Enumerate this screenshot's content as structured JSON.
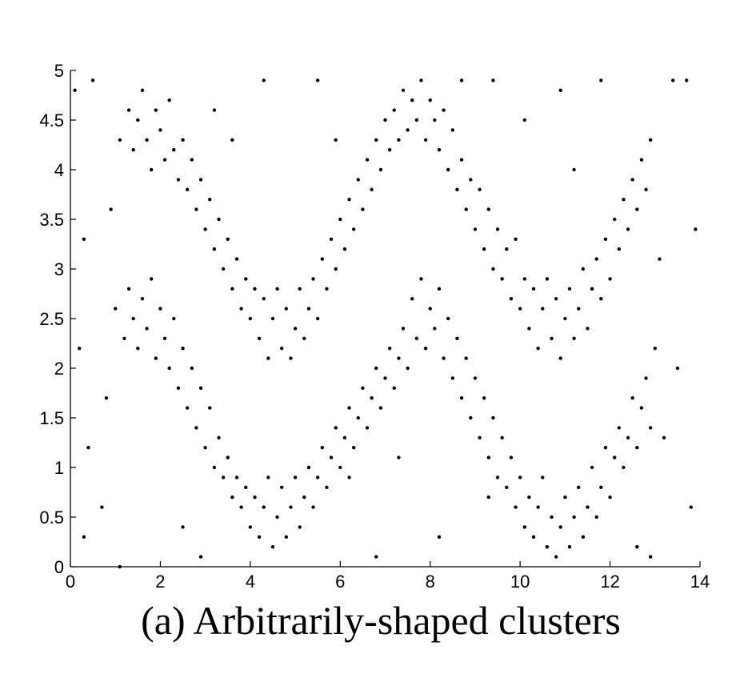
{
  "chart_data": {
    "type": "scatter",
    "title": "(a) Arbitrarily-shaped clusters",
    "color": "#000000",
    "xlim": [
      0,
      14
    ],
    "ylim": [
      0,
      5
    ],
    "xticks": [
      0,
      2,
      4,
      6,
      8,
      10,
      12,
      14
    ],
    "yticks": [
      0,
      0.5,
      1,
      1.5,
      2,
      2.5,
      3,
      3.5,
      4,
      4.5,
      5
    ],
    "x": [
      1.1,
      1.3,
      1.4,
      1.5,
      1.6,
      1.7,
      1.8,
      1.9,
      2.0,
      2.1,
      2.2,
      2.3,
      2.4,
      2.5,
      2.6,
      2.7,
      2.8,
      2.9,
      3.0,
      3.1,
      3.2,
      3.3,
      3.4,
      3.5,
      3.6,
      3.7,
      3.8,
      3.9,
      4.0,
      4.1,
      4.2,
      4.3,
      4.4,
      4.5,
      4.6,
      4.7,
      4.8,
      4.9,
      5.0,
      5.1,
      5.2,
      5.3,
      5.4,
      5.5,
      5.6,
      5.7,
      5.8,
      5.9,
      6.0,
      6.1,
      6.2,
      6.3,
      6.4,
      6.5,
      6.6,
      6.7,
      6.8,
      6.9,
      7.0,
      7.1,
      7.2,
      7.3,
      7.4,
      7.5,
      7.6,
      7.7,
      7.8,
      7.9,
      8.0,
      8.1,
      8.2,
      8.3,
      8.4,
      8.5,
      8.6,
      8.7,
      8.8,
      8.9,
      9.0,
      9.1,
      9.2,
      9.3,
      9.4,
      9.5,
      9.6,
      9.7,
      9.8,
      9.9,
      10.0,
      10.1,
      10.2,
      10.3,
      10.4,
      10.5,
      10.6,
      10.7,
      10.8,
      10.9,
      11.0,
      11.1,
      11.2,
      11.3,
      11.4,
      11.5,
      11.6,
      11.7,
      11.8,
      11.9,
      12.0,
      12.1,
      12.2,
      12.3,
      12.4,
      12.5,
      12.6,
      12.7,
      12.8,
      12.9,
      1.0,
      1.2,
      1.3,
      1.4,
      1.5,
      1.6,
      1.7,
      1.8,
      1.9,
      2.0,
      2.1,
      2.2,
      2.3,
      2.4,
      2.5,
      2.6,
      2.7,
      2.8,
      2.9,
      3.0,
      3.1,
      3.2,
      3.3,
      3.4,
      3.5,
      3.6,
      3.7,
      3.8,
      3.9,
      4.0,
      4.1,
      4.2,
      4.3,
      4.4,
      4.5,
      4.6,
      4.7,
      4.8,
      4.9,
      5.0,
      5.1,
      5.2,
      5.3,
      5.4,
      5.5,
      5.6,
      5.7,
      5.8,
      5.9,
      6.0,
      6.1,
      6.2,
      6.3,
      6.4,
      6.5,
      6.6,
      6.7,
      6.8,
      6.9,
      7.0,
      7.1,
      7.2,
      7.3,
      7.4,
      7.5,
      7.6,
      7.7,
      7.8,
      7.9,
      8.0,
      8.1,
      8.2,
      8.3,
      8.4,
      8.5,
      8.6,
      8.7,
      8.8,
      8.9,
      9.0,
      9.1,
      9.2,
      9.3,
      9.4,
      9.5,
      9.6,
      9.7,
      9.8,
      9.9,
      10.0,
      10.1,
      10.2,
      10.3,
      10.4,
      10.5,
      10.6,
      10.7,
      10.8,
      10.9,
      11.0,
      11.1,
      11.2,
      11.3,
      11.4,
      11.5,
      11.6,
      11.7,
      11.8,
      11.9,
      12.0,
      12.1,
      12.2,
      12.3,
      12.4,
      12.5,
      12.6,
      12.7,
      12.8,
      12.9,
      13.0,
      0.1,
      0.3,
      0.5,
      0.2,
      0.4,
      0.7,
      0.9,
      0.3,
      1.1,
      2.5,
      3.2,
      4.3,
      5.5,
      6.2,
      6.8,
      8.7,
      9.4,
      10.1,
      10.9,
      11.8,
      12.9,
      13.4,
      13.7,
      13.5,
      13.9,
      13.2,
      13.8,
      12.6,
      7.3,
      9.3,
      2.9,
      5.9,
      0.8,
      13.1,
      11.2,
      3.6,
      8.2
    ],
    "y": [
      4.3,
      4.6,
      4.2,
      4.5,
      4.8,
      4.3,
      4.0,
      4.6,
      4.4,
      4.1,
      4.7,
      4.2,
      3.9,
      4.3,
      3.8,
      4.1,
      3.6,
      3.9,
      3.4,
      3.7,
      3.2,
      3.5,
      3.0,
      3.3,
      2.8,
      3.1,
      2.6,
      2.9,
      2.5,
      2.8,
      2.3,
      2.7,
      2.1,
      2.5,
      2.8,
      2.2,
      2.6,
      2.1,
      2.4,
      2.8,
      2.3,
      2.6,
      2.9,
      2.5,
      3.1,
      2.8,
      3.3,
      3.0,
      3.5,
      3.2,
      3.7,
      3.4,
      3.9,
      3.6,
      4.1,
      3.8,
      4.3,
      4.0,
      4.5,
      4.2,
      4.6,
      4.3,
      4.8,
      4.4,
      4.7,
      4.5,
      4.9,
      4.3,
      4.7,
      4.5,
      4.2,
      4.6,
      4.0,
      4.4,
      3.8,
      4.1,
      3.6,
      3.9,
      3.4,
      3.8,
      3.2,
      3.6,
      3.0,
      3.4,
      2.9,
      3.2,
      2.7,
      3.3,
      2.6,
      2.9,
      2.4,
      2.8,
      2.2,
      2.6,
      2.9,
      2.3,
      2.7,
      2.1,
      2.5,
      2.8,
      2.3,
      2.6,
      3.0,
      2.4,
      2.8,
      3.1,
      2.7,
      3.3,
      2.9,
      3.5,
      3.2,
      3.7,
      3.4,
      3.9,
      3.6,
      4.1,
      3.8,
      4.3,
      2.6,
      2.3,
      2.8,
      2.5,
      2.2,
      2.7,
      2.4,
      2.9,
      2.1,
      2.6,
      2.3,
      2.0,
      2.5,
      1.8,
      2.2,
      1.6,
      2.0,
      1.4,
      1.8,
      1.2,
      1.6,
      1.0,
      1.3,
      0.9,
      1.1,
      0.7,
      0.9,
      0.6,
      0.8,
      0.4,
      0.7,
      0.3,
      0.6,
      0.9,
      0.2,
      0.5,
      0.8,
      0.3,
      0.6,
      0.9,
      0.4,
      0.7,
      1.0,
      0.6,
      0.9,
      1.2,
      0.8,
      1.1,
      1.4,
      1.0,
      1.3,
      1.6,
      1.2,
      1.5,
      1.8,
      1.4,
      1.7,
      2.0,
      1.6,
      1.9,
      2.2,
      1.8,
      2.1,
      2.4,
      2.0,
      2.7,
      2.3,
      2.9,
      2.2,
      2.6,
      2.4,
      2.8,
      2.1,
      2.5,
      1.9,
      2.3,
      1.7,
      2.1,
      1.5,
      1.9,
      1.3,
      1.7,
      1.1,
      1.5,
      0.9,
      1.3,
      0.8,
      1.1,
      0.6,
      0.9,
      0.4,
      0.7,
      0.3,
      0.6,
      0.9,
      0.2,
      0.5,
      0.1,
      0.4,
      0.7,
      0.2,
      0.5,
      0.8,
      0.3,
      0.6,
      1.0,
      0.5,
      0.8,
      1.2,
      0.7,
      1.1,
      1.4,
      1.0,
      1.3,
      1.7,
      1.2,
      1.6,
      1.9,
      1.4,
      2.2,
      4.8,
      3.3,
      4.9,
      2.2,
      1.2,
      0.6,
      3.6,
      0.3,
      0.0,
      0.4,
      4.6,
      4.9,
      4.9,
      0.9,
      0.1,
      4.9,
      4.9,
      4.5,
      4.8,
      4.9,
      0.1,
      4.9,
      4.9,
      2.0,
      3.4,
      1.3,
      0.6,
      0.2,
      1.1,
      0.7,
      0.1,
      4.3,
      1.7,
      3.1,
      4.0,
      4.3,
      0.3
    ]
  }
}
